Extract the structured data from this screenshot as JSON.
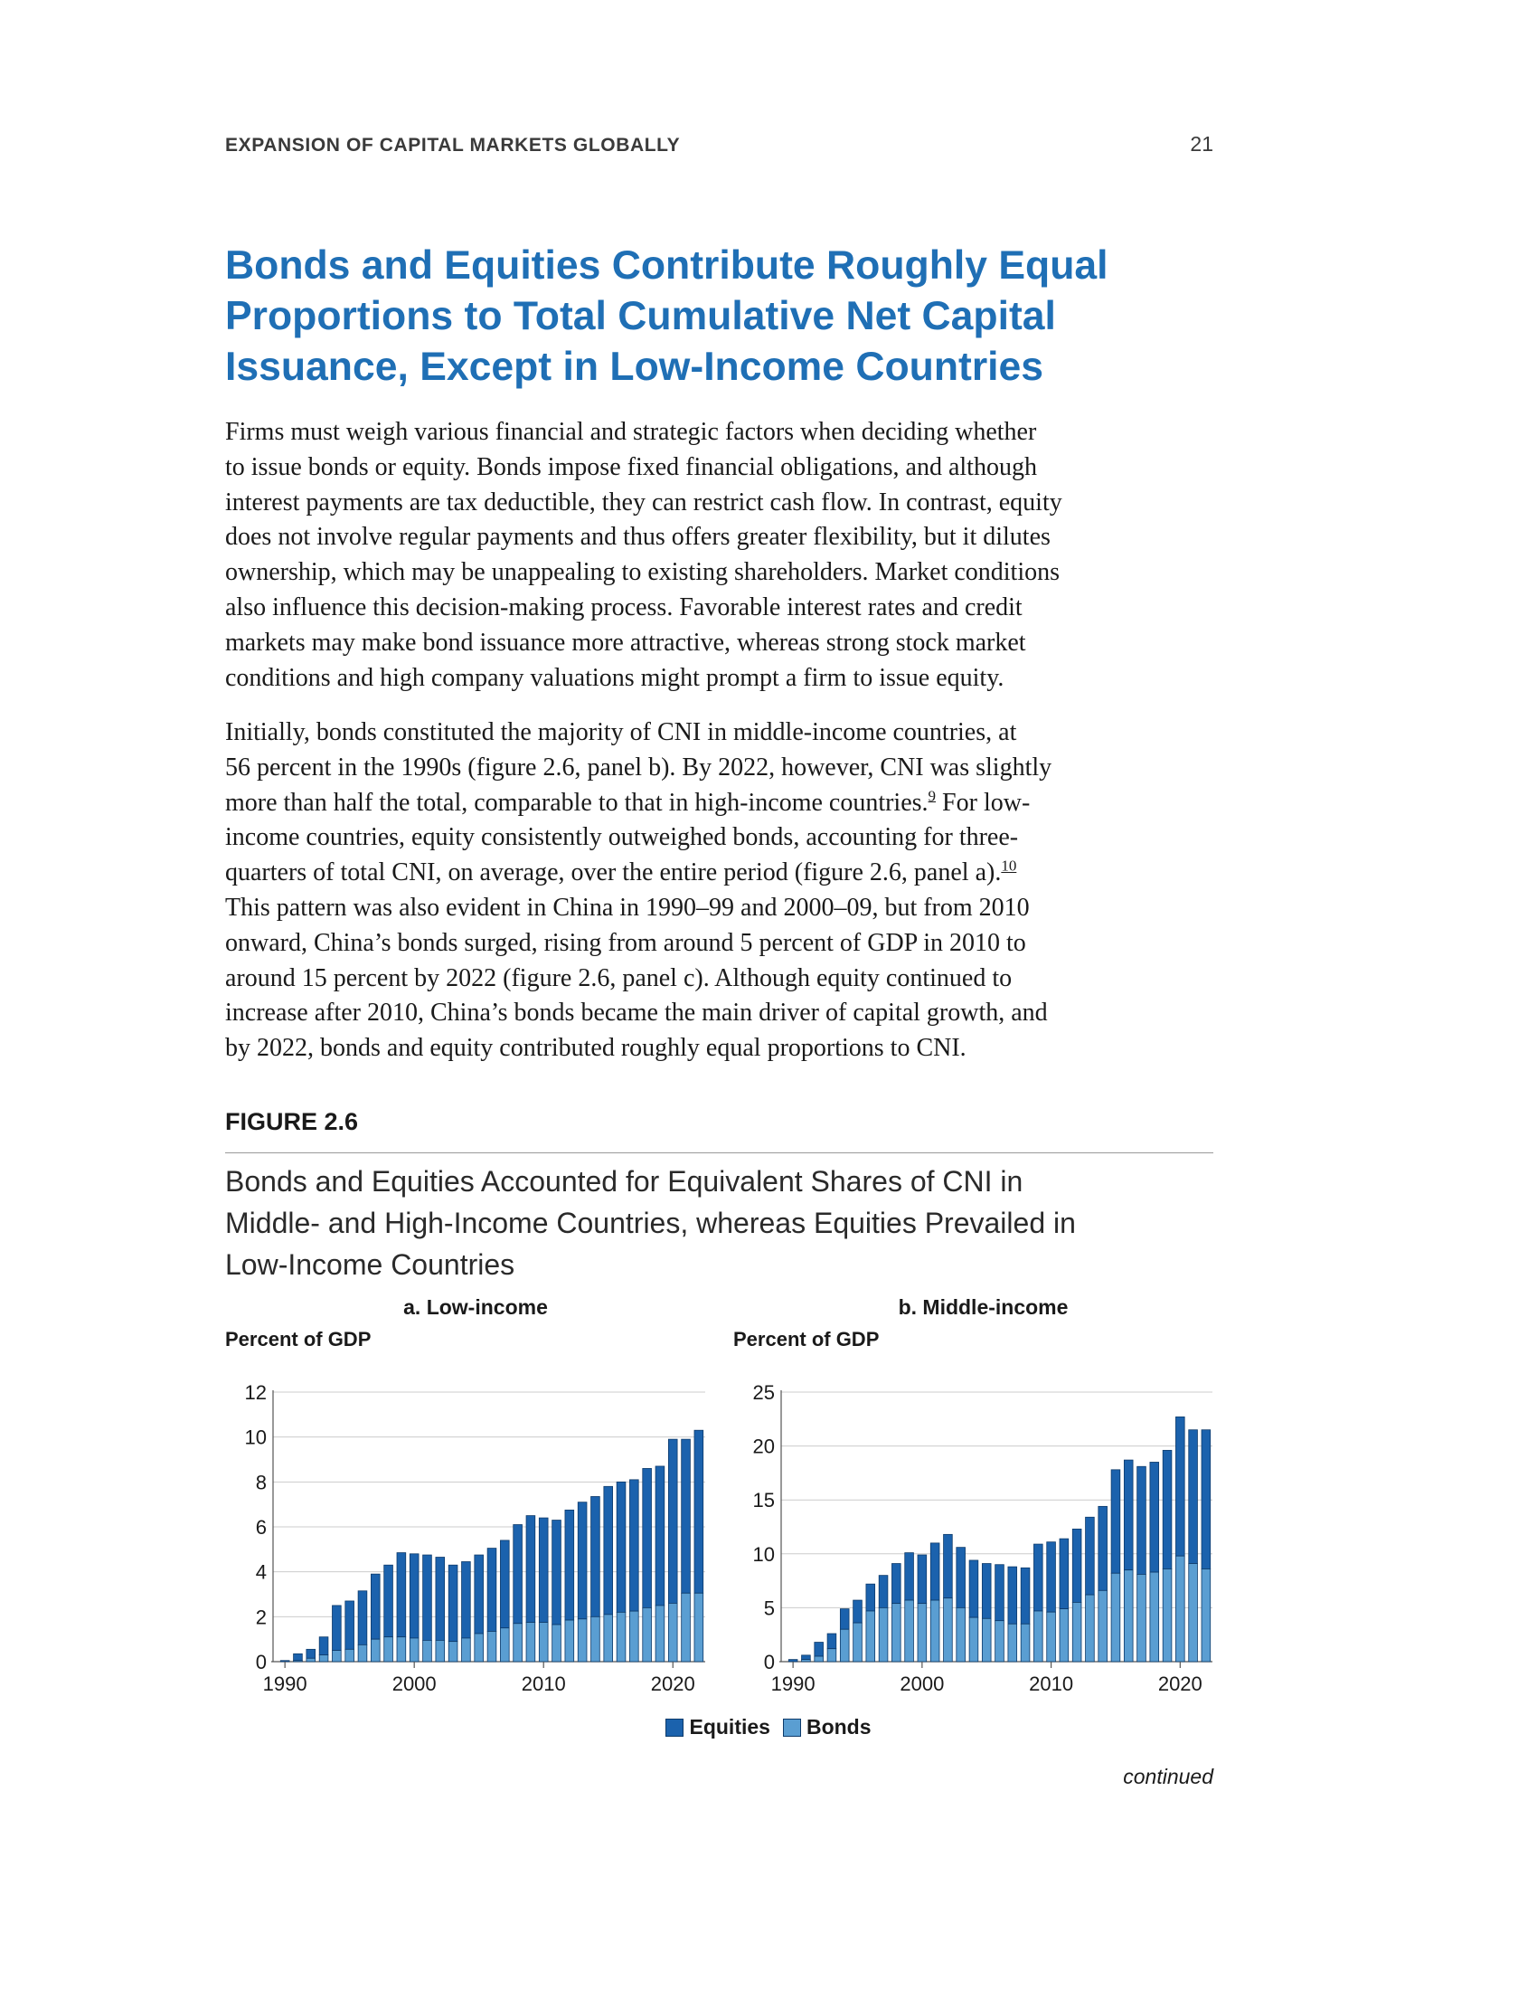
{
  "header": {
    "section": "EXPANSION OF CAPITAL MARKETS GLOBALLY",
    "page_number": "21"
  },
  "headline": [
    "Bonds and Equities Contribute Roughly Equal",
    "Proportions to Total Cumulative Net Capital",
    "Issuance, Except in Low-Income Countries"
  ],
  "paragraphs": {
    "p1": [
      "Firms must weigh various financial and strategic factors when deciding whether",
      "to issue bonds or equity. Bonds impose fixed financial obligations, and although",
      "interest payments are tax deductible, they can restrict cash flow. In contrast, equity",
      "does not involve regular payments and thus offers greater flexibility, but it dilutes",
      "ownership, which may be unappealing to existing shareholders. Market conditions",
      "also influence this decision-making process. Favorable interest rates and credit",
      "markets may make bond issuance more attractive, whereas strong stock market",
      "conditions and high company valuations might prompt a firm to issue equity."
    ],
    "p2": {
      "l1": "Initially, bonds constituted the majority of CNI in middle-income countries, at",
      "l2": "56 percent in the 1990s (figure 2.6, panel b). By 2022, however, CNI was slightly",
      "l3a": "more than half the total, comparable to that in high-income countries.",
      "fn9": "9",
      "l3b": " For low-",
      "l4": "income countries, equity consistently outweighed bonds, accounting for three-",
      "l5a": "quarters of total CNI, on average, over the entire period (figure 2.6, panel a).",
      "fn10": "10",
      "l6": "This pattern was also evident in China in 1990–99 and 2000–09, but from 2010",
      "l7": "onward, China’s bonds surged, rising from around 5 percent of GDP in 2010 to",
      "l8": "around 15 percent by 2022 (figure 2.6, panel c). Although equity continued to",
      "l9": "increase after 2010, China’s bonds became the main driver of capital growth, and",
      "l10": "by 2022, bonds and equity contributed roughly equal proportions to CNI."
    }
  },
  "figure": {
    "label": "FIGURE 2.6",
    "title": [
      "Bonds and Equities Accounted for Equivalent Shares of CNI in",
      "Middle- and High-Income Countries, whereas Equities Prevailed in",
      "Low-Income Countries"
    ],
    "continued": "continued"
  },
  "legend": {
    "equities": "Equities",
    "bonds": "Bonds"
  },
  "colors": {
    "equities": "#1b62ad",
    "bonds": "#5a9ed2",
    "outline": "#0d3a6a",
    "grid": "#cccccc",
    "accent": "#1f6fb5"
  },
  "chart_data": [
    {
      "type": "bar",
      "stacked": true,
      "title": "a. Low-income",
      "ylabel": "Percent of GDP",
      "ylim": [
        0,
        12
      ],
      "yticks": [
        0,
        2,
        4,
        6,
        8,
        10,
        12
      ],
      "xticks": [
        1990,
        2000,
        2010,
        2020
      ],
      "grid": true,
      "categories": [
        1990,
        1991,
        1992,
        1993,
        1994,
        1995,
        1996,
        1997,
        1998,
        1999,
        2000,
        2001,
        2002,
        2003,
        2004,
        2005,
        2006,
        2007,
        2008,
        2009,
        2010,
        2011,
        2012,
        2013,
        2014,
        2015,
        2016,
        2017,
        2018,
        2019,
        2020,
        2021,
        2022
      ],
      "series": [
        {
          "name": "Bonds",
          "values": [
            0.0,
            0.05,
            0.15,
            0.3,
            0.5,
            0.55,
            0.75,
            1.0,
            1.1,
            1.1,
            1.05,
            0.95,
            0.95,
            0.9,
            1.05,
            1.25,
            1.35,
            1.5,
            1.7,
            1.75,
            1.75,
            1.65,
            1.85,
            1.9,
            2.0,
            2.1,
            2.2,
            2.25,
            2.4,
            2.5,
            2.6,
            3.05,
            3.05
          ],
          "totals": [
            0.05,
            0.35,
            0.55,
            1.1,
            2.5,
            2.7,
            3.15,
            3.9,
            4.3,
            4.85,
            4.8,
            4.75,
            4.65,
            4.3,
            4.45,
            4.75,
            5.05,
            5.4,
            6.1,
            6.5,
            6.4,
            6.3,
            6.75,
            7.1,
            7.35,
            7.8,
            8.0,
            8.1,
            8.6,
            8.7,
            9.9,
            9.9,
            10.3
          ]
        },
        {
          "name": "Equities",
          "values": [
            0.05,
            0.3,
            0.4,
            0.8,
            2.0,
            2.15,
            2.4,
            2.9,
            3.2,
            3.75,
            3.75,
            3.8,
            3.7,
            3.4,
            3.4,
            3.5,
            3.7,
            3.9,
            4.4,
            4.75,
            4.65,
            4.65,
            4.9,
            5.2,
            5.35,
            5.7,
            5.8,
            5.85,
            6.2,
            6.2,
            7.3,
            6.85,
            7.25
          ]
        }
      ]
    },
    {
      "type": "bar",
      "stacked": true,
      "title": "b. Middle-income",
      "ylabel": "Percent of GDP",
      "ylim": [
        0,
        25
      ],
      "yticks": [
        0,
        5,
        10,
        15,
        20,
        25
      ],
      "xticks": [
        1990,
        2000,
        2010,
        2020
      ],
      "grid": true,
      "categories": [
        1990,
        1991,
        1992,
        1993,
        1994,
        1995,
        1996,
        1997,
        1998,
        1999,
        2000,
        2001,
        2002,
        2003,
        2004,
        2005,
        2006,
        2007,
        2008,
        2009,
        2010,
        2011,
        2012,
        2013,
        2014,
        2015,
        2016,
        2017,
        2018,
        2019,
        2020,
        2021,
        2022
      ],
      "series": [
        {
          "name": "Bonds",
          "values": [
            0.0,
            0.2,
            0.5,
            1.2,
            3.0,
            3.6,
            4.7,
            5.0,
            5.4,
            5.7,
            5.4,
            5.7,
            5.9,
            5.0,
            4.1,
            4.0,
            3.8,
            3.5,
            3.5,
            4.7,
            4.6,
            4.9,
            5.5,
            6.2,
            6.6,
            8.2,
            8.5,
            8.1,
            8.3,
            8.6,
            9.8,
            9.1,
            8.6
          ],
          "totals": [
            0.2,
            0.6,
            1.8,
            2.6,
            4.9,
            5.7,
            7.2,
            8.0,
            9.1,
            10.1,
            9.9,
            11.0,
            11.8,
            10.6,
            9.4,
            9.1,
            9.0,
            8.8,
            8.7,
            10.9,
            11.1,
            11.4,
            12.3,
            13.4,
            14.4,
            17.8,
            18.7,
            18.1,
            18.5,
            19.6,
            22.7,
            21.5,
            21.5
          ]
        },
        {
          "name": "Equities",
          "values": [
            0.2,
            0.4,
            1.3,
            1.4,
            1.9,
            2.1,
            2.5,
            3.0,
            3.7,
            4.4,
            4.5,
            5.3,
            5.9,
            5.6,
            5.3,
            5.1,
            5.2,
            5.3,
            5.2,
            6.2,
            6.5,
            6.5,
            6.8,
            7.2,
            7.8,
            9.6,
            10.2,
            10.0,
            10.2,
            11.0,
            12.9,
            12.4,
            12.9
          ]
        }
      ]
    }
  ]
}
